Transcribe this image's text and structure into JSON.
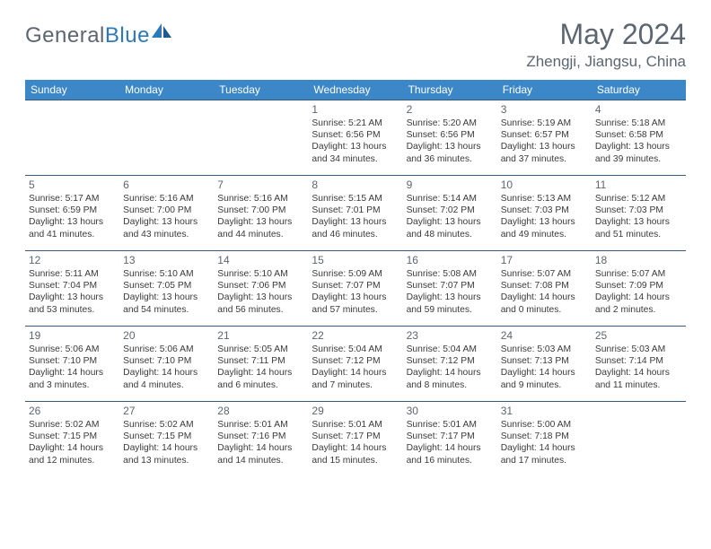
{
  "brand": {
    "part1": "General",
    "part2": "Blue"
  },
  "title": "May 2024",
  "location": "Zhengji, Jiangsu, China",
  "colors": {
    "header_bg": "#3b87c8",
    "header_text": "#ffffff",
    "rule": "#3b5a7a",
    "daynum": "#5c6670",
    "body_text": "#3a3a3a",
    "title_text": "#5c6670",
    "logo_gray": "#5c6670",
    "logo_blue": "#2e79b8",
    "page_bg": "#ffffff"
  },
  "day_headers": [
    "Sunday",
    "Monday",
    "Tuesday",
    "Wednesday",
    "Thursday",
    "Friday",
    "Saturday"
  ],
  "weeks": [
    [
      null,
      null,
      null,
      {
        "n": "1",
        "sr": "5:21 AM",
        "ss": "6:56 PM",
        "dl": "13 hours and 34 minutes."
      },
      {
        "n": "2",
        "sr": "5:20 AM",
        "ss": "6:56 PM",
        "dl": "13 hours and 36 minutes."
      },
      {
        "n": "3",
        "sr": "5:19 AM",
        "ss": "6:57 PM",
        "dl": "13 hours and 37 minutes."
      },
      {
        "n": "4",
        "sr": "5:18 AM",
        "ss": "6:58 PM",
        "dl": "13 hours and 39 minutes."
      }
    ],
    [
      {
        "n": "5",
        "sr": "5:17 AM",
        "ss": "6:59 PM",
        "dl": "13 hours and 41 minutes."
      },
      {
        "n": "6",
        "sr": "5:16 AM",
        "ss": "7:00 PM",
        "dl": "13 hours and 43 minutes."
      },
      {
        "n": "7",
        "sr": "5:16 AM",
        "ss": "7:00 PM",
        "dl": "13 hours and 44 minutes."
      },
      {
        "n": "8",
        "sr": "5:15 AM",
        "ss": "7:01 PM",
        "dl": "13 hours and 46 minutes."
      },
      {
        "n": "9",
        "sr": "5:14 AM",
        "ss": "7:02 PM",
        "dl": "13 hours and 48 minutes."
      },
      {
        "n": "10",
        "sr": "5:13 AM",
        "ss": "7:03 PM",
        "dl": "13 hours and 49 minutes."
      },
      {
        "n": "11",
        "sr": "5:12 AM",
        "ss": "7:03 PM",
        "dl": "13 hours and 51 minutes."
      }
    ],
    [
      {
        "n": "12",
        "sr": "5:11 AM",
        "ss": "7:04 PM",
        "dl": "13 hours and 53 minutes."
      },
      {
        "n": "13",
        "sr": "5:10 AM",
        "ss": "7:05 PM",
        "dl": "13 hours and 54 minutes."
      },
      {
        "n": "14",
        "sr": "5:10 AM",
        "ss": "7:06 PM",
        "dl": "13 hours and 56 minutes."
      },
      {
        "n": "15",
        "sr": "5:09 AM",
        "ss": "7:07 PM",
        "dl": "13 hours and 57 minutes."
      },
      {
        "n": "16",
        "sr": "5:08 AM",
        "ss": "7:07 PM",
        "dl": "13 hours and 59 minutes."
      },
      {
        "n": "17",
        "sr": "5:07 AM",
        "ss": "7:08 PM",
        "dl": "14 hours and 0 minutes."
      },
      {
        "n": "18",
        "sr": "5:07 AM",
        "ss": "7:09 PM",
        "dl": "14 hours and 2 minutes."
      }
    ],
    [
      {
        "n": "19",
        "sr": "5:06 AM",
        "ss": "7:10 PM",
        "dl": "14 hours and 3 minutes."
      },
      {
        "n": "20",
        "sr": "5:06 AM",
        "ss": "7:10 PM",
        "dl": "14 hours and 4 minutes."
      },
      {
        "n": "21",
        "sr": "5:05 AM",
        "ss": "7:11 PM",
        "dl": "14 hours and 6 minutes."
      },
      {
        "n": "22",
        "sr": "5:04 AM",
        "ss": "7:12 PM",
        "dl": "14 hours and 7 minutes."
      },
      {
        "n": "23",
        "sr": "5:04 AM",
        "ss": "7:12 PM",
        "dl": "14 hours and 8 minutes."
      },
      {
        "n": "24",
        "sr": "5:03 AM",
        "ss": "7:13 PM",
        "dl": "14 hours and 9 minutes."
      },
      {
        "n": "25",
        "sr": "5:03 AM",
        "ss": "7:14 PM",
        "dl": "14 hours and 11 minutes."
      }
    ],
    [
      {
        "n": "26",
        "sr": "5:02 AM",
        "ss": "7:15 PM",
        "dl": "14 hours and 12 minutes."
      },
      {
        "n": "27",
        "sr": "5:02 AM",
        "ss": "7:15 PM",
        "dl": "14 hours and 13 minutes."
      },
      {
        "n": "28",
        "sr": "5:01 AM",
        "ss": "7:16 PM",
        "dl": "14 hours and 14 minutes."
      },
      {
        "n": "29",
        "sr": "5:01 AM",
        "ss": "7:17 PM",
        "dl": "14 hours and 15 minutes."
      },
      {
        "n": "30",
        "sr": "5:01 AM",
        "ss": "7:17 PM",
        "dl": "14 hours and 16 minutes."
      },
      {
        "n": "31",
        "sr": "5:00 AM",
        "ss": "7:18 PM",
        "dl": "14 hours and 17 minutes."
      },
      null
    ]
  ],
  "labels": {
    "sunrise": "Sunrise:",
    "sunset": "Sunset:",
    "daylight": "Daylight:"
  }
}
